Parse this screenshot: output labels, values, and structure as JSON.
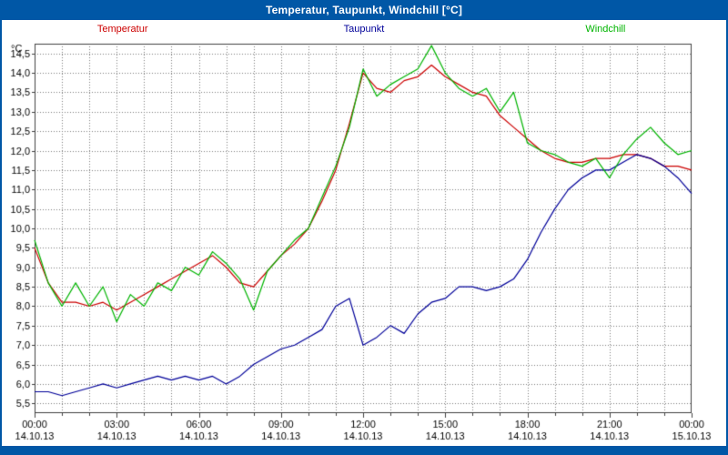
{
  "window": {
    "title": "Temperatur, Taupunkt, Windchill [°C]"
  },
  "colors": {
    "titlebar_blue": "#0057a6",
    "frame_blue": "#0057a6",
    "plot_background": "#ffffff",
    "grid": "#7d7d7d",
    "axis": "#404040",
    "text": "#000000"
  },
  "legend": {
    "items": [
      {
        "label": "Temperatur",
        "color": "#cc0000"
      },
      {
        "label": "Taupunkt",
        "color": "#000099"
      },
      {
        "label": "Windchill",
        "color": "#00b400"
      }
    ]
  },
  "chart_data": {
    "type": "line",
    "title": "Temperatur, Taupunkt, Windchill [°C]",
    "ylabel": "°C",
    "xlabel": "",
    "grid": "dotted",
    "grid_color": "#7d7d7d",
    "legend_position": "top",
    "ylim": [
      5.25,
      14.75
    ],
    "ytick_values": [
      5.5,
      6.0,
      6.5,
      7.0,
      7.5,
      8.0,
      8.5,
      9.0,
      9.5,
      10.0,
      10.5,
      11.0,
      11.5,
      12.0,
      12.5,
      13.0,
      13.5,
      14.0,
      14.5
    ],
    "ytick_labels": [
      "5,5",
      "6,0",
      "6,5",
      "7,0",
      "7,5",
      "8,0",
      "8,5",
      "9,0",
      "9,5",
      "10,0",
      "10,5",
      "11,0",
      "11,5",
      "12,0",
      "12,5",
      "13,0",
      "13,5",
      "14,0",
      "14,5"
    ],
    "xtick_hours": [
      0,
      3,
      6,
      9,
      12,
      15,
      18,
      21,
      24
    ],
    "xticks": [
      {
        "time": "00:00",
        "date": "14.10.13"
      },
      {
        "time": "03:00",
        "date": "14.10.13"
      },
      {
        "time": "06:00",
        "date": "14.10.13"
      },
      {
        "time": "09:00",
        "date": "14.10.13"
      },
      {
        "time": "12:00",
        "date": "14.10.13"
      },
      {
        "time": "15:00",
        "date": "14.10.13"
      },
      {
        "time": "18:00",
        "date": "14.10.13"
      },
      {
        "time": "21:00",
        "date": "14.10.13"
      },
      {
        "time": "00:00",
        "date": "15.10.13"
      }
    ],
    "x_hours": [
      0,
      0.5,
      1,
      1.5,
      2,
      2.5,
      3,
      3.5,
      4,
      4.5,
      5,
      5.5,
      6,
      6.5,
      7,
      7.5,
      8,
      8.5,
      9,
      9.5,
      10,
      10.5,
      11,
      11.5,
      12,
      12.5,
      13,
      13.5,
      14,
      14.5,
      15,
      15.5,
      16,
      16.5,
      17,
      17.5,
      18,
      18.5,
      19,
      19.5,
      20,
      20.5,
      21,
      21.5,
      22,
      22.5,
      23,
      23.5,
      24
    ],
    "series": [
      {
        "name": "Temperatur",
        "color": "#cc0000",
        "values": [
          9.5,
          8.6,
          8.1,
          8.1,
          8.0,
          8.1,
          7.9,
          8.1,
          8.3,
          8.5,
          8.7,
          8.9,
          9.1,
          9.3,
          9.0,
          8.6,
          8.5,
          8.9,
          9.3,
          9.6,
          10.0,
          10.7,
          11.5,
          12.7,
          14.0,
          13.6,
          13.5,
          13.8,
          13.9,
          14.2,
          13.9,
          13.7,
          13.5,
          13.4,
          12.9,
          12.6,
          12.3,
          12.0,
          11.8,
          11.7,
          11.7,
          11.8,
          11.8,
          11.9,
          11.9,
          11.8,
          11.6,
          11.6,
          11.5
        ]
      },
      {
        "name": "Taupunkt",
        "color": "#000099",
        "values": [
          5.8,
          5.8,
          5.7,
          5.8,
          5.9,
          6.0,
          5.9,
          6.0,
          6.1,
          6.2,
          6.1,
          6.2,
          6.1,
          6.2,
          6.0,
          6.2,
          6.5,
          6.7,
          6.9,
          7.0,
          7.2,
          7.4,
          8.0,
          8.2,
          7.0,
          7.2,
          7.5,
          7.3,
          7.8,
          8.1,
          8.2,
          8.5,
          8.5,
          8.4,
          8.5,
          8.7,
          9.2,
          9.9,
          10.5,
          11.0,
          11.3,
          11.5,
          11.5,
          11.7,
          11.9,
          11.8,
          11.6,
          11.3,
          10.9
        ]
      },
      {
        "name": "Windchill",
        "color": "#00b400",
        "values": [
          9.7,
          8.6,
          8.0,
          8.6,
          8.0,
          8.5,
          7.6,
          8.3,
          8.0,
          8.6,
          8.4,
          9.0,
          8.8,
          9.4,
          9.1,
          8.7,
          7.9,
          8.9,
          9.3,
          9.7,
          10.0,
          10.8,
          11.6,
          12.6,
          14.1,
          13.4,
          13.7,
          13.9,
          14.1,
          14.7,
          14.0,
          13.6,
          13.4,
          13.6,
          13.0,
          13.5,
          12.2,
          12.0,
          11.9,
          11.7,
          11.6,
          11.8,
          11.3,
          11.9,
          12.3,
          12.6,
          12.2,
          11.9,
          12.0
        ]
      }
    ]
  }
}
